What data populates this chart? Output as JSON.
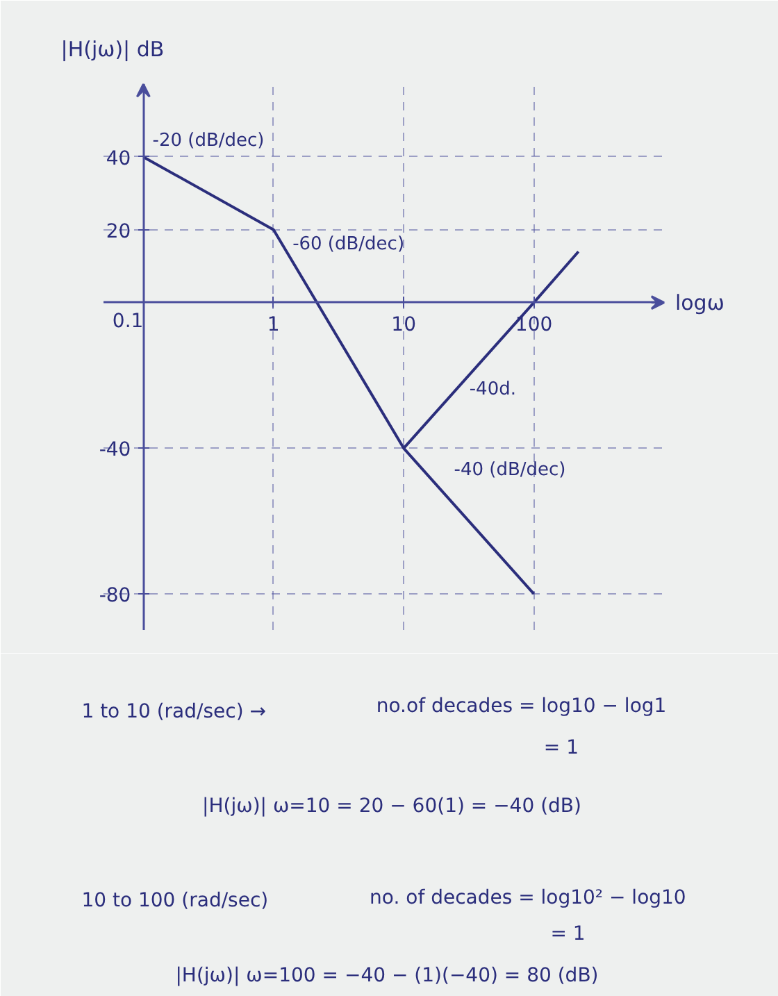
{
  "chart_data": {
    "type": "line",
    "xlabel": "logω",
    "ylabel": "|H(jω)| dB",
    "log": "x",
    "xlim": [
      0.05,
      1000
    ],
    "ylim": [
      -90,
      60
    ],
    "xticks": [
      0.1,
      1,
      10,
      100
    ],
    "yticks": [
      -80,
      -40,
      20,
      40
    ],
    "grid": true,
    "line_style": "solid",
    "series": [
      {
        "color": "#2b2e7c",
        "x": [
          0.1,
          1,
          10,
          100
        ],
        "values": [
          40,
          20,
          -40,
          -80
        ]
      },
      {
        "color": "#2b2e7c",
        "x": [
          10,
          100,
          220
        ],
        "values": [
          -40,
          0,
          14
        ]
      }
    ],
    "annotations": [
      {
        "text": "-20 (dB/dec)",
        "x": 0.316,
        "y": 30
      },
      {
        "text": "-60 (dB/dec)",
        "x": 1.15,
        "y": 16
      },
      {
        "text": "-40d.",
        "x": 25,
        "y": -24
      },
      {
        "text": "-40 (dB/dec)",
        "x": 20,
        "y": -52
      },
      "1 to 10 (rad/sec) →",
      "no.of decades = log10 − log1",
      "= 1",
      "|H(jω)| ω=10 = 20 − 60(1) = −40 (dB)",
      "10 to 100 (rad/sec)",
      "no. of decades = log10² − log10",
      "= 1",
      "|H(jω)| ω=100 = −40 − (1)(−40) = 80 (dB)"
    ]
  }
}
